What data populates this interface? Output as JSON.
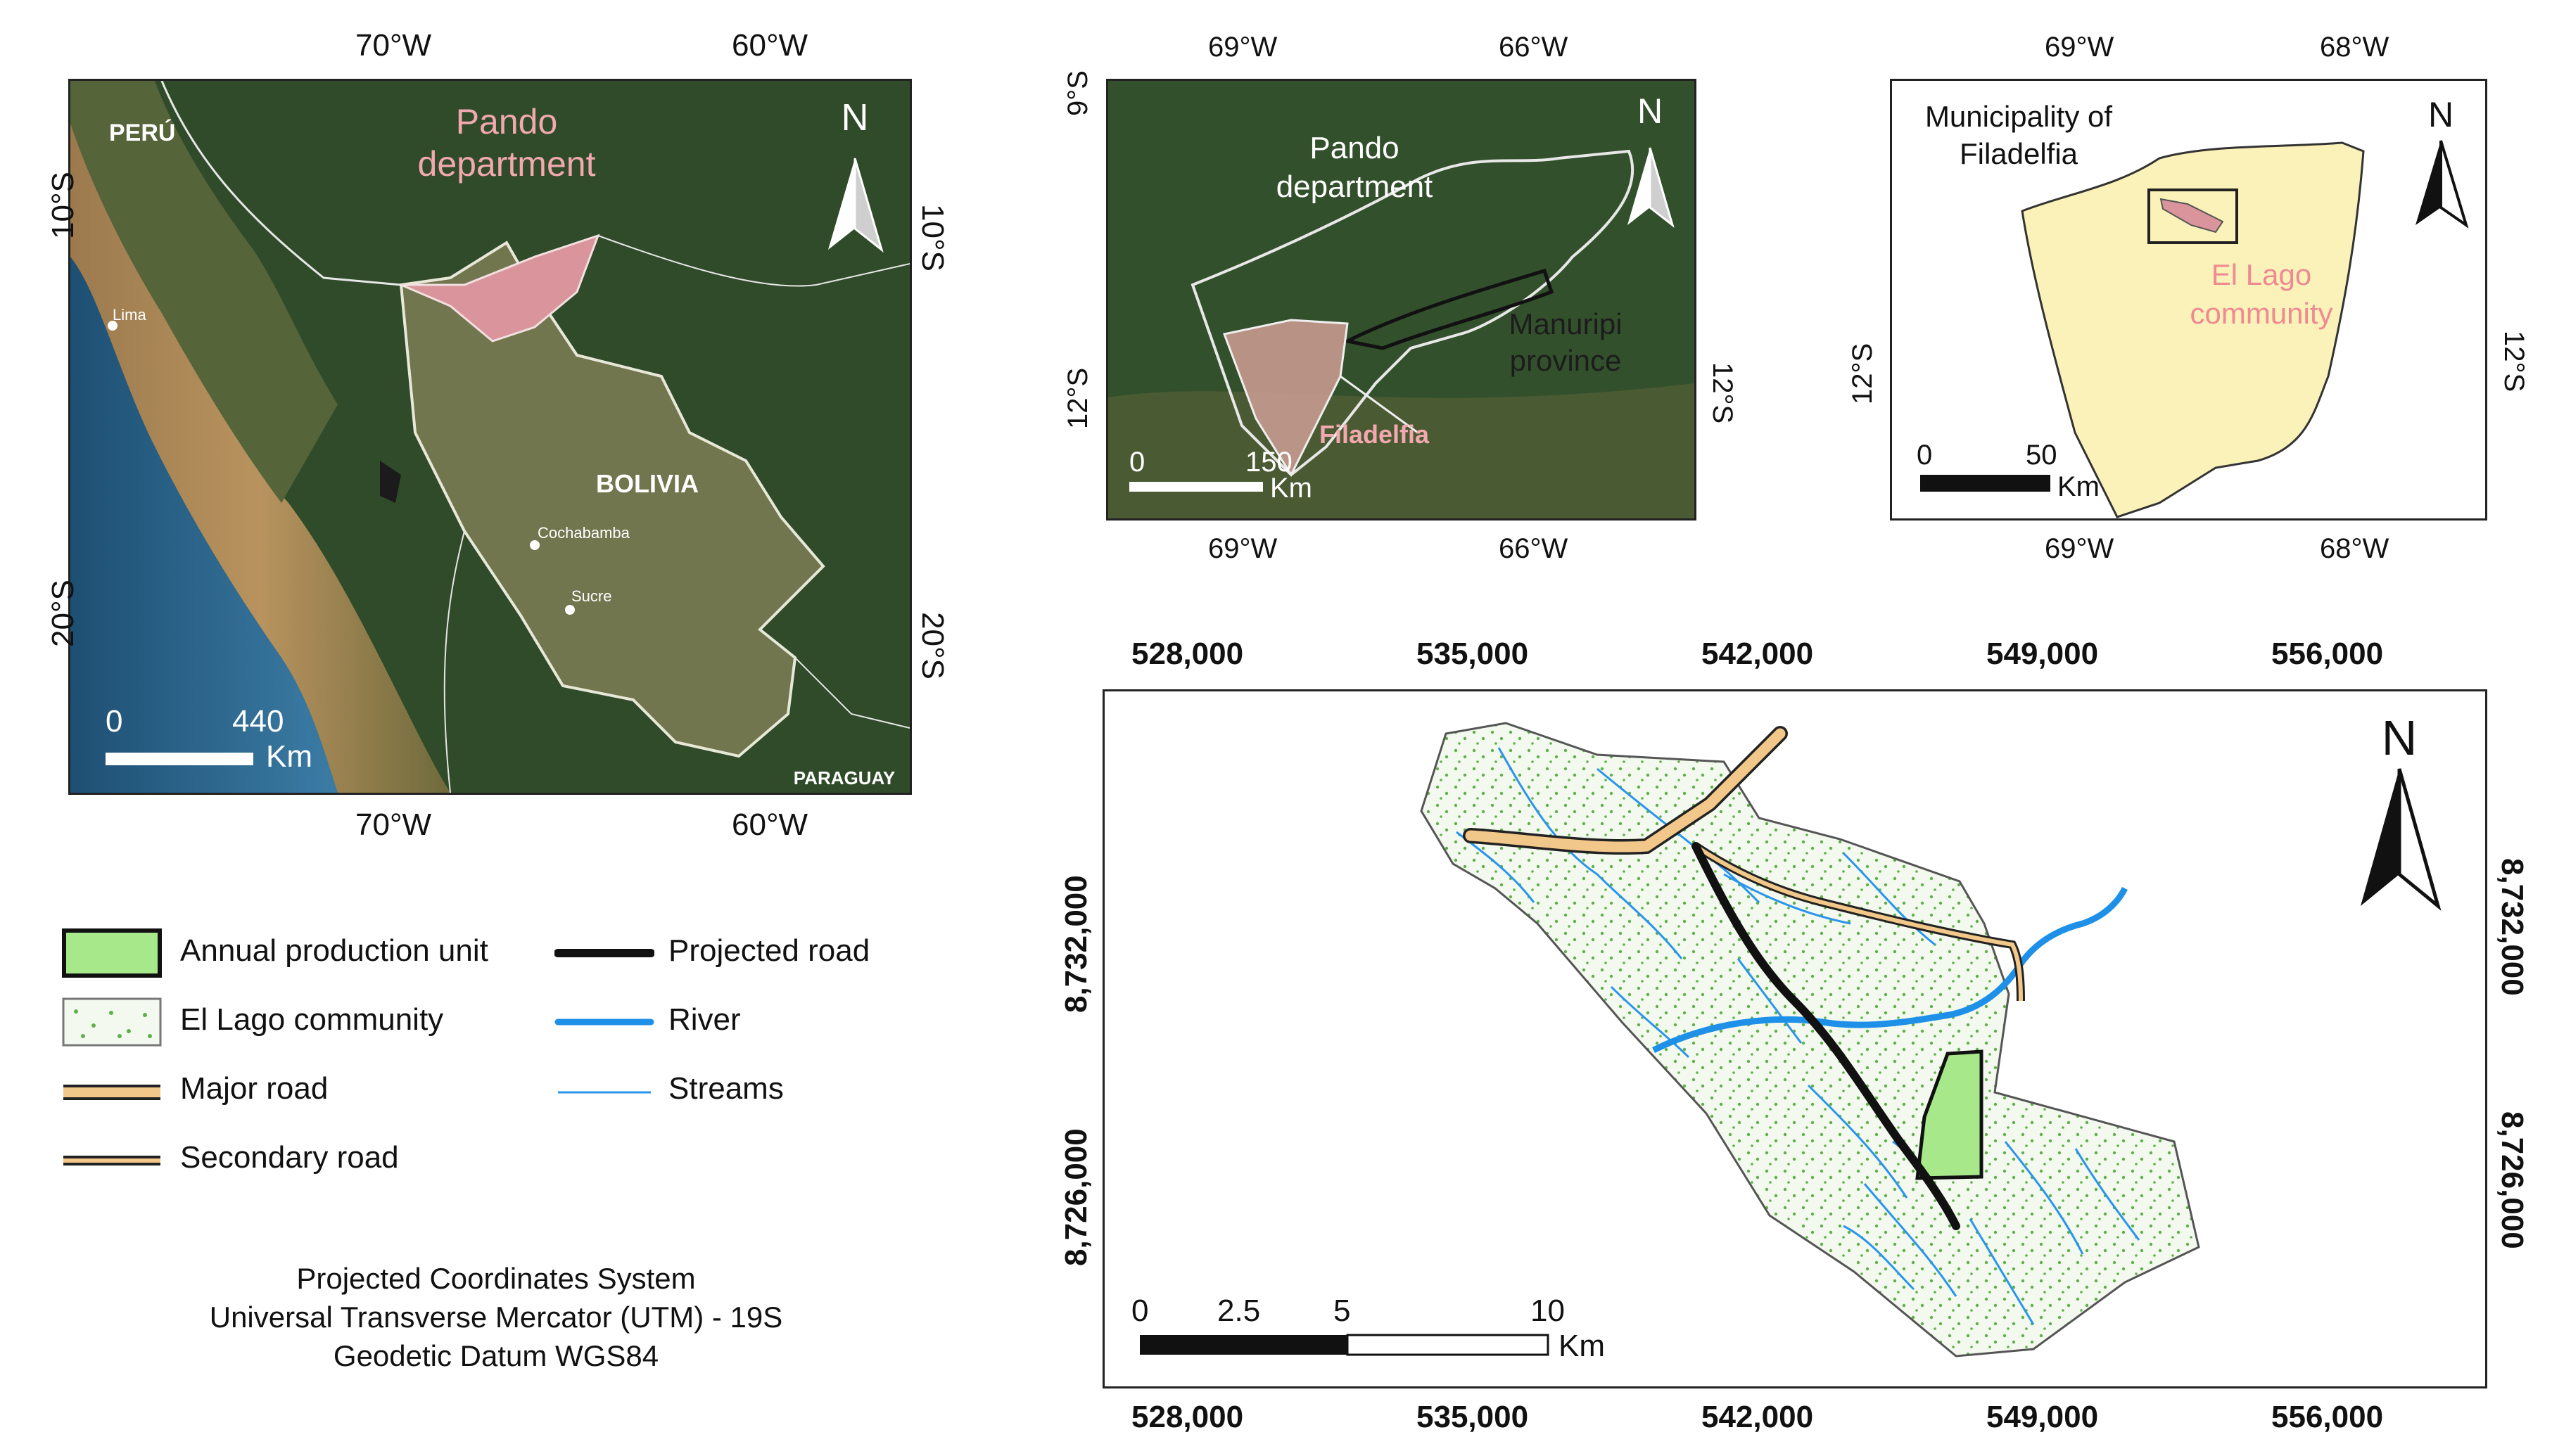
{
  "map1": {
    "top_ticks": [
      "70°W",
      "60°W"
    ],
    "bottom_ticks": [
      "70°W",
      "60°W"
    ],
    "left_ticks": [
      "10°S",
      "20°S"
    ],
    "right_ticks": [
      "10°S",
      "20°S"
    ],
    "labels": {
      "peru": "PERÚ",
      "pando_line1": "Pando",
      "pando_line2": "department",
      "bolivia": "BOLIVIA",
      "paraguay": "PARAGUAY",
      "lima": "Lima",
      "cochabamba": "Cochabamba",
      "sucre": "Sucre",
      "north": "N"
    },
    "scale": {
      "start": "0",
      "end": "440",
      "unit": "Km"
    }
  },
  "map2": {
    "top_ticks": [
      "69°W",
      "66°W"
    ],
    "bottom_ticks": [
      "69°W",
      "66°W"
    ],
    "left_ticks": [
      "9°S",
      "12°S"
    ],
    "right_ticks": [
      "12°S"
    ],
    "labels": {
      "pando_line1": "Pando",
      "pando_line2": "department",
      "manuripi_line1": "Manuripi",
      "manuripi_line2": "province",
      "filadelfia": "Filadelfia",
      "north": "N"
    },
    "scale": {
      "start": "0",
      "end": "150",
      "unit": "Km"
    }
  },
  "map3": {
    "top_ticks": [
      "69°W",
      "68°W"
    ],
    "bottom_ticks": [
      "69°W",
      "68°W"
    ],
    "left_ticks": [
      "12°S"
    ],
    "right_ticks": [
      "12°S"
    ],
    "labels": {
      "municipality_line1": "Municipality of",
      "municipality_line2": "Filadelfia",
      "community_line1": "El Lago",
      "community_line2": "community",
      "north": "N"
    },
    "scale": {
      "start": "0",
      "end": "50",
      "unit": "Km"
    }
  },
  "map4": {
    "top_ticks": [
      "528,000",
      "535,000",
      "542,000",
      "549,000",
      "556,000"
    ],
    "bottom_ticks": [
      "528,000",
      "535,000",
      "542,000",
      "549,000",
      "556,000"
    ],
    "left_ticks": [
      "8,732,000",
      "8,726,000"
    ],
    "right_ticks": [
      "8,732,000",
      "8,726,000"
    ],
    "north": "N",
    "scale": {
      "ticks": [
        "0",
        "2.5",
        "5",
        "10"
      ],
      "unit": "Km"
    }
  },
  "legend": {
    "items": [
      "Annual production unit",
      "El Lago community",
      "Major road",
      "Secondary road",
      "Projected road",
      "River",
      "Streams"
    ]
  },
  "projection": {
    "line1": "Projected Coordinates System",
    "line2": "Universal Transverse Mercator (UTM) - 19S",
    "line3": "Geodetic Datum WGS84"
  },
  "colors": {
    "pando": "#d9959b",
    "community_fill": "#eef6e4",
    "municipality_fill": "#faf2b8",
    "river": "#1e90e8",
    "major_road": "#f2c88a",
    "apu_fill": "#a6e88a"
  }
}
